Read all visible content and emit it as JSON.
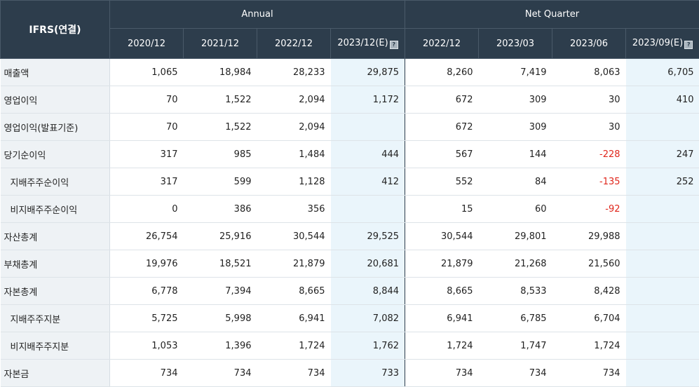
{
  "header": {
    "corner": "IFRS(연결)",
    "groups": [
      "Annual",
      "Net Quarter"
    ],
    "periods": [
      "2020/12",
      "2021/12",
      "2022/12",
      "2023/12(E)",
      "2022/12",
      "2023/03",
      "2023/06",
      "2023/09(E)"
    ]
  },
  "rows": [
    {
      "label": "매출액",
      "cells": [
        "1,065",
        "18,984",
        "28,233",
        "29,875",
        "8,260",
        "7,419",
        "8,063",
        "6,705"
      ]
    },
    {
      "label": "영업이익",
      "cells": [
        "70",
        "1,522",
        "2,094",
        "1,172",
        "672",
        "309",
        "30",
        "410"
      ]
    },
    {
      "label": "영업이익(발표기준)",
      "cells": [
        "70",
        "1,522",
        "2,094",
        "",
        "672",
        "309",
        "30",
        ""
      ]
    },
    {
      "label": "당기순이익",
      "cells": [
        "317",
        "985",
        "1,484",
        "444",
        "567",
        "144",
        "-228",
        "247"
      ]
    },
    {
      "label": "지배주주순이익",
      "cells": [
        "317",
        "599",
        "1,128",
        "412",
        "552",
        "84",
        "-135",
        "252"
      ]
    },
    {
      "label": "비지배주주순이익",
      "cells": [
        "0",
        "386",
        "356",
        "",
        "15",
        "60",
        "-92",
        ""
      ]
    },
    {
      "label": "자산총계",
      "cells": [
        "26,754",
        "25,916",
        "30,544",
        "29,525",
        "30,544",
        "29,801",
        "29,988",
        ""
      ]
    },
    {
      "label": "부채총계",
      "cells": [
        "19,976",
        "18,521",
        "21,879",
        "20,681",
        "21,879",
        "21,268",
        "21,560",
        ""
      ]
    },
    {
      "label": "자본총계",
      "cells": [
        "6,778",
        "7,394",
        "8,665",
        "8,844",
        "8,665",
        "8,533",
        "8,428",
        ""
      ]
    },
    {
      "label": "지배주주지분",
      "cells": [
        "5,725",
        "5,998",
        "6,941",
        "7,082",
        "6,941",
        "6,785",
        "6,704",
        ""
      ]
    },
    {
      "label": "비지배주주지분",
      "cells": [
        "1,053",
        "1,396",
        "1,724",
        "1,762",
        "1,724",
        "1,747",
        "1,724",
        ""
      ]
    },
    {
      "label": "자본금",
      "cells": [
        "734",
        "734",
        "734",
        "733",
        "734",
        "734",
        "734",
        ""
      ]
    }
  ],
  "colors": {
    "header_bg": "#2d3d4c",
    "negative": "#e0261b",
    "estimate_bg": "#eaf5fb",
    "label_bg": "#eef2f5"
  },
  "icons": {
    "estimate_info": "info-icon"
  }
}
